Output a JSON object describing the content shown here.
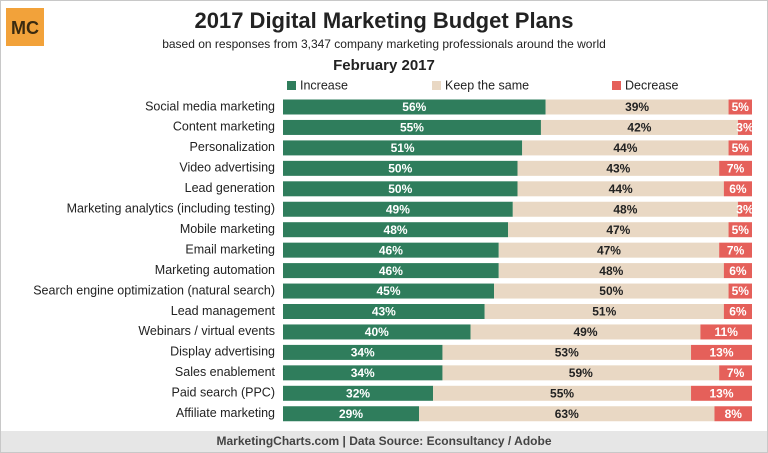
{
  "logo": "MC",
  "chart_data": {
    "type": "stacked-bar-horizontal",
    "title": "2017 Digital Marketing Budget Plans",
    "subtitle": "based on responses from 3,347 company marketing professionals around the world",
    "date": "February 2017",
    "footer": "MarketingCharts.com | Data Source: Econsultancy / Adobe",
    "categories": [
      "Social media marketing",
      "Content marketing",
      "Personalization",
      "Video advertising",
      "Lead generation",
      "Marketing analytics (including testing)",
      "Mobile marketing",
      "Email marketing",
      "Marketing automation",
      "Search engine optimization (natural search)",
      "Lead management",
      "Webinars / virtual events",
      "Display advertising",
      "Sales enablement",
      "Paid search (PPC)",
      "Affiliate marketing"
    ],
    "series": [
      {
        "name": "Increase",
        "color": "#2f7d5c",
        "label_color": "#ffffff",
        "values": [
          56,
          55,
          51,
          50,
          50,
          49,
          48,
          46,
          46,
          45,
          43,
          40,
          34,
          34,
          32,
          29
        ],
        "value_labels": [
          "56%",
          "55%",
          "51%",
          "50%",
          "50%",
          "49%",
          "48%",
          "46%",
          "46%",
          "45%",
          "43%",
          "40%",
          "34%",
          "34%",
          "32%",
          "29%"
        ]
      },
      {
        "name": "Keep the same",
        "color": "#e9d8c4",
        "label_color": "#222222",
        "values": [
          39,
          42,
          44,
          43,
          44,
          48,
          47,
          47,
          48,
          50,
          51,
          49,
          53,
          59,
          55,
          63
        ],
        "value_labels": [
          "39%",
          "42%",
          "44%",
          "43%",
          "44%",
          "48%",
          "47%",
          "47%",
          "48%",
          "50%",
          "51%",
          "49%",
          "53%",
          "59%",
          "55%",
          "63%"
        ]
      },
      {
        "name": "Decrease",
        "color": "#e5605a",
        "label_color": "#ffffff",
        "values": [
          5,
          3,
          5,
          7,
          6,
          3,
          5,
          7,
          6,
          5,
          6,
          11,
          13,
          7,
          13,
          8
        ],
        "value_labels": [
          "5%",
          "3%",
          "5%",
          "7%",
          "6%",
          "3%",
          "5%",
          "7%",
          "6%",
          "5%",
          "6%",
          "11%",
          "13%",
          "7%",
          "13%",
          "8%"
        ]
      }
    ]
  }
}
